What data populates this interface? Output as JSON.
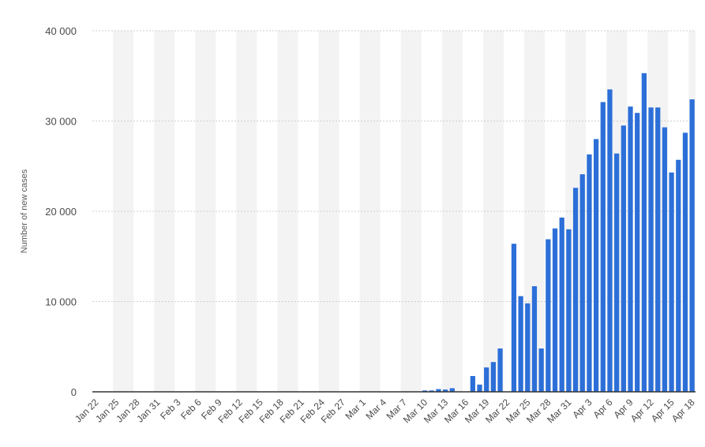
{
  "chart_data": {
    "type": "bar",
    "title": "",
    "xlabel": "",
    "ylabel": "Number of new cases",
    "ylim": [
      0,
      40000
    ],
    "y_ticks": [
      0,
      10000,
      20000,
      30000,
      40000
    ],
    "y_tick_labels": [
      "0",
      "10 000",
      "20 000",
      "30 000",
      "40 000"
    ],
    "grid": true,
    "legend": "none",
    "bar_color": "#2c6fd8",
    "band_color": "#f3f3f3",
    "grid_color": "#cfcfcf",
    "axis_color": "#333333",
    "x_tick_labels": [
      "Jan 22",
      "Jan 25",
      "Jan 28",
      "Jan 31",
      "Feb 3",
      "Feb 6",
      "Feb 9",
      "Feb 12",
      "Feb 15",
      "Feb 18",
      "Feb 21",
      "Feb 24",
      "Feb 27",
      "Mar 1",
      "Mar 4",
      "Mar 7",
      "Mar 10",
      "Mar 13",
      "Mar 16",
      "Mar 19",
      "Mar 22",
      "Mar 25",
      "Mar 28",
      "Mar 31",
      "Apr 3",
      "Apr 6",
      "Apr 9",
      "Apr 12",
      "Apr 15",
      "Apr 18"
    ],
    "categories": [
      "Jan 22",
      "Jan 23",
      "Jan 24",
      "Jan 25",
      "Jan 26",
      "Jan 27",
      "Jan 28",
      "Jan 29",
      "Jan 30",
      "Jan 31",
      "Feb 1",
      "Feb 2",
      "Feb 3",
      "Feb 4",
      "Feb 5",
      "Feb 6",
      "Feb 7",
      "Feb 8",
      "Feb 9",
      "Feb 10",
      "Feb 11",
      "Feb 12",
      "Feb 13",
      "Feb 14",
      "Feb 15",
      "Feb 16",
      "Feb 17",
      "Feb 18",
      "Feb 19",
      "Feb 20",
      "Feb 21",
      "Feb 22",
      "Feb 23",
      "Feb 24",
      "Feb 25",
      "Feb 26",
      "Feb 27",
      "Feb 28",
      "Feb 29",
      "Mar 1",
      "Mar 2",
      "Mar 3",
      "Mar 4",
      "Mar 5",
      "Mar 6",
      "Mar 7",
      "Mar 8",
      "Mar 9",
      "Mar 10",
      "Mar 11",
      "Mar 12",
      "Mar 13",
      "Mar 14",
      "Mar 15",
      "Mar 16",
      "Mar 17",
      "Mar 18",
      "Mar 19",
      "Mar 20",
      "Mar 21",
      "Mar 22",
      "Mar 23",
      "Mar 24",
      "Mar 25",
      "Mar 26",
      "Mar 27",
      "Mar 28",
      "Mar 29",
      "Mar 30",
      "Mar 31",
      "Apr 1",
      "Apr 2",
      "Apr 3",
      "Apr 4",
      "Apr 5",
      "Apr 6",
      "Apr 7",
      "Apr 8",
      "Apr 9",
      "Apr 10",
      "Apr 11",
      "Apr 12",
      "Apr 13",
      "Apr 14",
      "Apr 15",
      "Apr 16",
      "Apr 17",
      "Apr 18"
    ],
    "values": [
      0,
      0,
      0,
      0,
      0,
      0,
      0,
      0,
      0,
      0,
      0,
      0,
      0,
      0,
      0,
      0,
      0,
      0,
      0,
      0,
      0,
      0,
      0,
      0,
      0,
      0,
      0,
      0,
      0,
      0,
      0,
      0,
      0,
      0,
      0,
      0,
      0,
      0,
      0,
      0,
      0,
      0,
      0,
      0,
      0,
      0,
      0,
      0,
      150,
      150,
      300,
      250,
      400,
      0,
      0,
      1750,
      800,
      2700,
      3300,
      4800,
      0,
      16400,
      10600,
      9800,
      11700,
      4800,
      16900,
      18100,
      19300,
      18000,
      22600,
      24100,
      26300,
      28000,
      32100,
      33500,
      26400,
      29500,
      31600,
      30900,
      35300,
      31500,
      31500,
      29300,
      24300,
      25700,
      28700,
      32400
    ]
  }
}
